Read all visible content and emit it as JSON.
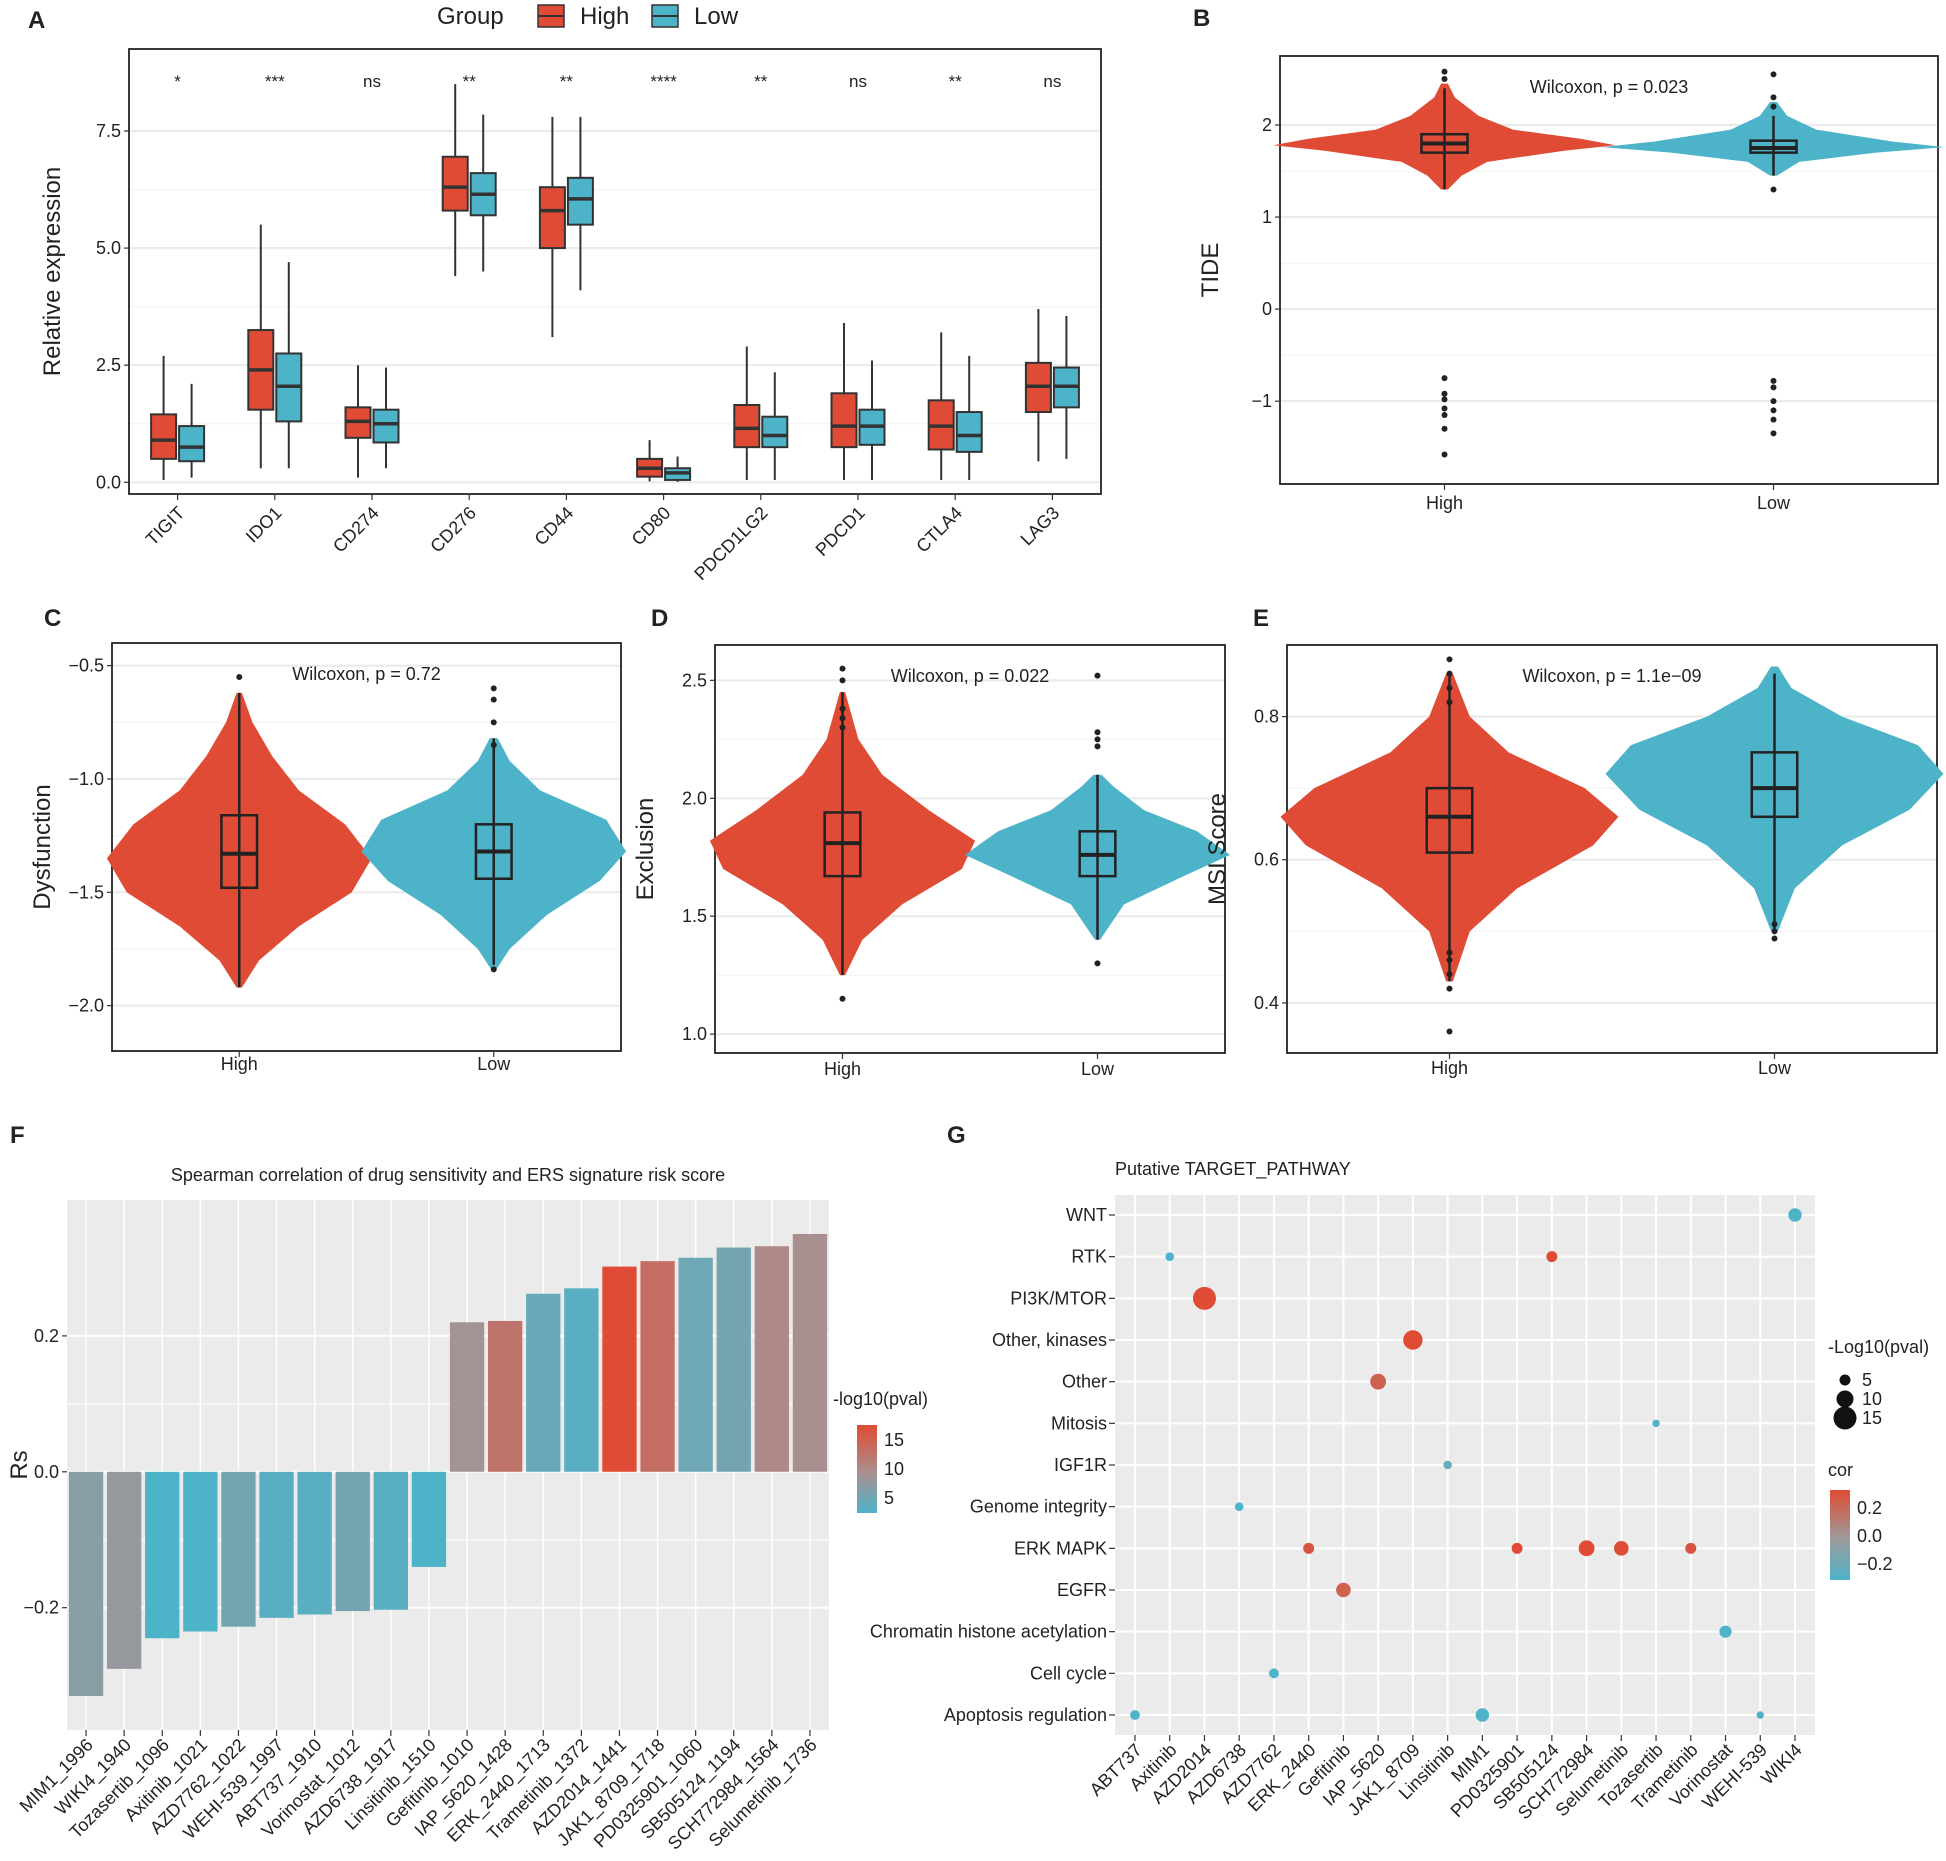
{
  "panels": {
    "A": {
      "label": "A",
      "legend_title": "Group",
      "legend_high": "High",
      "legend_low": "Low",
      "ylabel": "Relative expression",
      "high_color": "#E04B35",
      "low_color": "#4DB3C9",
      "chart_data": {
        "type": "boxplot",
        "ylim": [
          -0.25,
          9.25
        ],
        "yticks": [
          0.0,
          2.5,
          5.0,
          7.5
        ],
        "ytick_labels": [
          "0.0",
          "2.5",
          "5.0",
          "7.5"
        ],
        "genes": [
          "TIGIT",
          "IDO1",
          "CD274",
          "CD276",
          "CD44",
          "CD80",
          "PDCD1LG2",
          "PDCD1",
          "CTLA4",
          "LAG3"
        ],
        "significance": [
          "*",
          "***",
          "ns",
          "**",
          "**",
          "****",
          "**",
          "ns",
          "**",
          "ns"
        ],
        "series": [
          {
            "name": "High",
            "boxes": [
              [
                0.05,
                0.5,
                0.9,
                1.45,
                2.7
              ],
              [
                0.3,
                1.55,
                2.4,
                3.25,
                5.5
              ],
              [
                0.1,
                0.95,
                1.3,
                1.6,
                2.5
              ],
              [
                4.4,
                5.8,
                6.3,
                6.95,
                8.5
              ],
              [
                3.1,
                5.0,
                5.8,
                6.3,
                7.8
              ],
              [
                0.02,
                0.12,
                0.3,
                0.5,
                0.9
              ],
              [
                0.05,
                0.75,
                1.15,
                1.65,
                2.9
              ],
              [
                0.05,
                0.75,
                1.2,
                1.9,
                3.4
              ],
              [
                0.05,
                0.7,
                1.2,
                1.75,
                3.2
              ],
              [
                0.45,
                1.5,
                2.05,
                2.55,
                3.7
              ]
            ]
          },
          {
            "name": "Low",
            "boxes": [
              [
                0.1,
                0.45,
                0.75,
                1.2,
                2.1
              ],
              [
                0.3,
                1.3,
                2.05,
                2.75,
                4.7
              ],
              [
                0.3,
                0.85,
                1.25,
                1.55,
                2.45
              ],
              [
                4.5,
                5.7,
                6.15,
                6.6,
                7.85
              ],
              [
                4.1,
                5.5,
                6.05,
                6.5,
                7.8
              ],
              [
                0.01,
                0.05,
                0.2,
                0.3,
                0.55
              ],
              [
                0.05,
                0.75,
                1.0,
                1.4,
                2.35
              ],
              [
                0.05,
                0.8,
                1.2,
                1.55,
                2.6
              ],
              [
                0.05,
                0.65,
                1.0,
                1.5,
                2.7
              ],
              [
                0.5,
                1.6,
                2.05,
                2.45,
                3.55
              ]
            ]
          }
        ]
      }
    },
    "B": {
      "label": "B",
      "ylabel": "TIDE",
      "annotation": "Wilcoxon, p = 0.023",
      "chart_data": {
        "type": "violin",
        "ylim": [
          -1.9,
          2.75
        ],
        "yticks": [
          -1,
          0,
          1,
          2
        ],
        "ytick_labels": [
          "−1",
          "0",
          "1",
          "2"
        ],
        "categories": [
          "High",
          "Low"
        ],
        "boxes": [
          [
            1.3,
            1.7,
            1.8,
            1.9,
            2.4
          ],
          [
            1.45,
            1.7,
            1.75,
            1.83,
            2.1
          ]
        ],
        "outliers": [
          [
            -0.75,
            -0.92,
            -0.98,
            -1.08,
            -1.15,
            -1.3,
            -1.58,
            2.5,
            2.58
          ],
          [
            -0.78,
            -0.85,
            -1.0,
            -1.1,
            -1.2,
            -1.35,
            1.3,
            2.2,
            2.3,
            2.55
          ]
        ],
        "widths": [
          [
            [
              1.3,
              0.02
            ],
            [
              1.45,
              0.1
            ],
            [
              1.6,
              0.25
            ],
            [
              1.72,
              0.7
            ],
            [
              1.78,
              1.0
            ],
            [
              1.85,
              0.8
            ],
            [
              1.95,
              0.4
            ],
            [
              2.1,
              0.2
            ],
            [
              2.3,
              0.06
            ],
            [
              2.45,
              0.02
            ]
          ],
          [
            [
              1.45,
              0.02
            ],
            [
              1.6,
              0.15
            ],
            [
              1.7,
              0.6
            ],
            [
              1.76,
              1.0
            ],
            [
              1.82,
              0.7
            ],
            [
              1.95,
              0.25
            ],
            [
              2.1,
              0.08
            ],
            [
              2.25,
              0.02
            ]
          ]
        ]
      }
    },
    "C": {
      "label": "C",
      "ylabel": "Dysfunction",
      "annotation": "Wilcoxon, p = 0.72",
      "chart_data": {
        "type": "violin",
        "ylim": [
          -2.2,
          -0.4
        ],
        "yticks": [
          -2.0,
          -1.5,
          -1.0,
          -0.5
        ],
        "ytick_labels": [
          "−2.0",
          "−1.5",
          "−1.0",
          "−0.5"
        ],
        "categories": [
          "High",
          "Low"
        ],
        "boxes": [
          [
            -1.92,
            -1.48,
            -1.33,
            -1.16,
            -0.62
          ],
          [
            -1.82,
            -1.44,
            -1.32,
            -1.2,
            -0.82
          ]
        ],
        "outliers": [
          [
            -0.55
          ],
          [
            -0.6,
            -0.65,
            -0.75,
            -0.85,
            -1.84
          ]
        ],
        "widths": [
          [
            [
              -1.92,
              0.02
            ],
            [
              -1.8,
              0.15
            ],
            [
              -1.65,
              0.45
            ],
            [
              -1.5,
              0.85
            ],
            [
              -1.35,
              1.0
            ],
            [
              -1.2,
              0.8
            ],
            [
              -1.05,
              0.45
            ],
            [
              -0.9,
              0.25
            ],
            [
              -0.75,
              0.1
            ],
            [
              -0.62,
              0.02
            ]
          ],
          [
            [
              -1.84,
              0.02
            ],
            [
              -1.75,
              0.12
            ],
            [
              -1.6,
              0.4
            ],
            [
              -1.45,
              0.8
            ],
            [
              -1.32,
              1.0
            ],
            [
              -1.18,
              0.85
            ],
            [
              -1.05,
              0.35
            ],
            [
              -0.92,
              0.12
            ],
            [
              -0.82,
              0.03
            ]
          ]
        ]
      }
    },
    "D": {
      "label": "D",
      "ylabel": "Exclusion",
      "annotation": "Wilcoxon, p = 0.022",
      "chart_data": {
        "type": "violin",
        "ylim": [
          0.92,
          2.65
        ],
        "yticks": [
          1.0,
          1.5,
          2.0,
          2.5
        ],
        "ytick_labels": [
          "1.0",
          "1.5",
          "2.0",
          "2.5"
        ],
        "categories": [
          "High",
          "Low"
        ],
        "boxes": [
          [
            1.25,
            1.67,
            1.81,
            1.94,
            2.45
          ],
          [
            1.4,
            1.67,
            1.76,
            1.86,
            2.1
          ]
        ],
        "outliers": [
          [
            1.15,
            2.3,
            2.34,
            2.38,
            2.5,
            2.55
          ],
          [
            1.3,
            2.22,
            2.25,
            2.28,
            2.52
          ]
        ],
        "widths": [
          [
            [
              1.25,
              0.02
            ],
            [
              1.4,
              0.15
            ],
            [
              1.55,
              0.45
            ],
            [
              1.7,
              0.9
            ],
            [
              1.82,
              1.0
            ],
            [
              1.95,
              0.65
            ],
            [
              2.1,
              0.3
            ],
            [
              2.25,
              0.12
            ],
            [
              2.45,
              0.02
            ]
          ],
          [
            [
              1.4,
              0.02
            ],
            [
              1.55,
              0.2
            ],
            [
              1.67,
              0.65
            ],
            [
              1.76,
              1.0
            ],
            [
              1.86,
              0.75
            ],
            [
              1.95,
              0.35
            ],
            [
              2.05,
              0.12
            ],
            [
              2.1,
              0.03
            ]
          ]
        ]
      }
    },
    "E": {
      "label": "E",
      "ylabel": "MSI Score",
      "annotation": "Wilcoxon, p = 1.1e−09",
      "chart_data": {
        "type": "violin",
        "ylim": [
          0.33,
          0.9
        ],
        "yticks": [
          0.4,
          0.6,
          0.8
        ],
        "ytick_labels": [
          "0.4",
          "0.6",
          "0.8"
        ],
        "categories": [
          "High",
          "Low"
        ],
        "boxes": [
          [
            0.43,
            0.61,
            0.66,
            0.7,
            0.86
          ],
          [
            0.5,
            0.66,
            0.7,
            0.75,
            0.86
          ]
        ],
        "outliers": [
          [
            0.36,
            0.42,
            0.44,
            0.46,
            0.47,
            0.82,
            0.84,
            0.86,
            0.88
          ],
          [
            0.49,
            0.5,
            0.51
          ]
        ],
        "widths": [
          [
            [
              0.43,
              0.02
            ],
            [
              0.5,
              0.12
            ],
            [
              0.56,
              0.4
            ],
            [
              0.62,
              0.85
            ],
            [
              0.66,
              1.0
            ],
            [
              0.7,
              0.8
            ],
            [
              0.75,
              0.35
            ],
            [
              0.8,
              0.12
            ],
            [
              0.86,
              0.02
            ]
          ],
          [
            [
              0.5,
              0.02
            ],
            [
              0.56,
              0.12
            ],
            [
              0.62,
              0.4
            ],
            [
              0.67,
              0.8
            ],
            [
              0.72,
              1.0
            ],
            [
              0.76,
              0.85
            ],
            [
              0.8,
              0.4
            ],
            [
              0.84,
              0.1
            ],
            [
              0.87,
              0.02
            ]
          ]
        ]
      }
    },
    "F": {
      "label": "F",
      "title": "Spearman correlation of drug sensitivity and ERS signature risk score",
      "ylabel": "Rs",
      "legend_title": "-log10(pval)",
      "legend_ticks": [
        "15",
        "10",
        "5"
      ],
      "chart_data": {
        "type": "bar",
        "ylim": [
          -0.38,
          0.4
        ],
        "yticks": [
          -0.2,
          0.0,
          0.2
        ],
        "ytick_labels": [
          "−0.2",
          "0.0",
          "0.2"
        ],
        "categories": [
          "MIM1_1996",
          "WIKI4_1940",
          "Tozasertib_1096",
          "Axitinib_1021",
          "AZD7762_1022",
          "WEHI-539_1997",
          "ABT737_1910",
          "Vorinostat_1012",
          "AZD6738_1917",
          "Linsitinib_1510",
          "Gefitinib_1010",
          "IAP_5620_1428",
          "ERK_2440_1713",
          "Trametinib_1372",
          "AZD2014_1441",
          "JAK1_8709_1718",
          "PD0325901_1060",
          "SB505124_1194",
          "SCH772984_1564",
          "Selumetinib_1736"
        ],
        "values": [
          -0.33,
          -0.29,
          -0.245,
          -0.235,
          -0.228,
          -0.215,
          -0.21,
          -0.205,
          -0.203,
          -0.14,
          0.22,
          0.222,
          0.262,
          0.27,
          0.302,
          0.31,
          0.315,
          0.33,
          0.332,
          0.35
        ],
        "neglog10p": [
          7.5,
          8.5,
          3,
          3,
          6,
          4,
          4,
          6,
          4,
          3,
          9.5,
          12,
          5,
          4,
          15,
          12.5,
          5.5,
          6,
          10.5,
          10
        ]
      }
    },
    "G": {
      "label": "G",
      "title": "Putative TARGET_PATHWAY",
      "size_legend_title": "-Log10(pval)",
      "size_legend_ticks": [
        "5",
        "10",
        "15"
      ],
      "color_legend_title": "cor",
      "color_legend_ticks": [
        "0.2",
        "0.0",
        "−0.2"
      ],
      "chart_data": {
        "type": "scatter",
        "x_categories": [
          "ABT737",
          "Axitinib",
          "AZD2014",
          "AZD6738",
          "AZD7762",
          "ERK_2440",
          "Gefitinib",
          "IAP_5620",
          "JAK1_8709",
          "Linsitinib",
          "MIM1",
          "PD0325901",
          "SB505124",
          "SCH772984",
          "Selumetinib",
          "Tozasertib",
          "Trametinib",
          "Vorinostat",
          "WEHI-539",
          "WIKI4"
        ],
        "y_categories": [
          "WNT",
          "RTK",
          "PI3K/MTOR",
          "Other, kinases",
          "Other",
          "Mitosis",
          "IGF1R",
          "Genome integrity",
          "ERK MAPK",
          "EGFR",
          "Chromatin histone acetylation",
          "Cell cycle",
          "Apoptosis regulation"
        ],
        "points": [
          {
            "x": "ABT737",
            "y": "Apoptosis regulation",
            "cor": -0.21,
            "logp": 4
          },
          {
            "x": "Axitinib",
            "y": "RTK",
            "cor": -0.235,
            "logp": 3
          },
          {
            "x": "AZD2014",
            "y": "PI3K/MTOR",
            "cor": 0.302,
            "logp": 15
          },
          {
            "x": "AZD6738",
            "y": "Genome integrity",
            "cor": -0.203,
            "logp": 3
          },
          {
            "x": "AZD7762",
            "y": "Cell cycle",
            "cor": -0.228,
            "logp": 4
          },
          {
            "x": "ERK_2440",
            "y": "ERK MAPK",
            "cor": 0.262,
            "logp": 5
          },
          {
            "x": "Gefitinib",
            "y": "EGFR",
            "cor": 0.22,
            "logp": 8
          },
          {
            "x": "IAP_5620",
            "y": "Other",
            "cor": 0.222,
            "logp": 9
          },
          {
            "x": "JAK1_8709",
            "y": "Other, kinases",
            "cor": 0.31,
            "logp": 12
          },
          {
            "x": "Linsitinib",
            "y": "IGF1R",
            "cor": -0.14,
            "logp": 3
          },
          {
            "x": "MIM1",
            "y": "Apoptosis regulation",
            "cor": -0.33,
            "logp": 7
          },
          {
            "x": "PD0325901",
            "y": "ERK MAPK",
            "cor": 0.315,
            "logp": 5
          },
          {
            "x": "SB505124",
            "y": "RTK",
            "cor": 0.33,
            "logp": 5
          },
          {
            "x": "SCH772984",
            "y": "ERK MAPK",
            "cor": 0.332,
            "logp": 9
          },
          {
            "x": "Selumetinib",
            "y": "ERK MAPK",
            "cor": 0.35,
            "logp": 8
          },
          {
            "x": "Tozasertib",
            "y": "Mitosis",
            "cor": -0.245,
            "logp": 2
          },
          {
            "x": "Trametinib",
            "y": "ERK MAPK",
            "cor": 0.27,
            "logp": 5
          },
          {
            "x": "Vorinostat",
            "y": "Chromatin histone acetylation",
            "cor": -0.205,
            "logp": 6
          },
          {
            "x": "WEHI-539",
            "y": "Apoptosis regulation",
            "cor": -0.215,
            "logp": 2
          },
          {
            "x": "WIKI4",
            "y": "WNT",
            "cor": -0.29,
            "logp": 7
          }
        ]
      }
    }
  }
}
